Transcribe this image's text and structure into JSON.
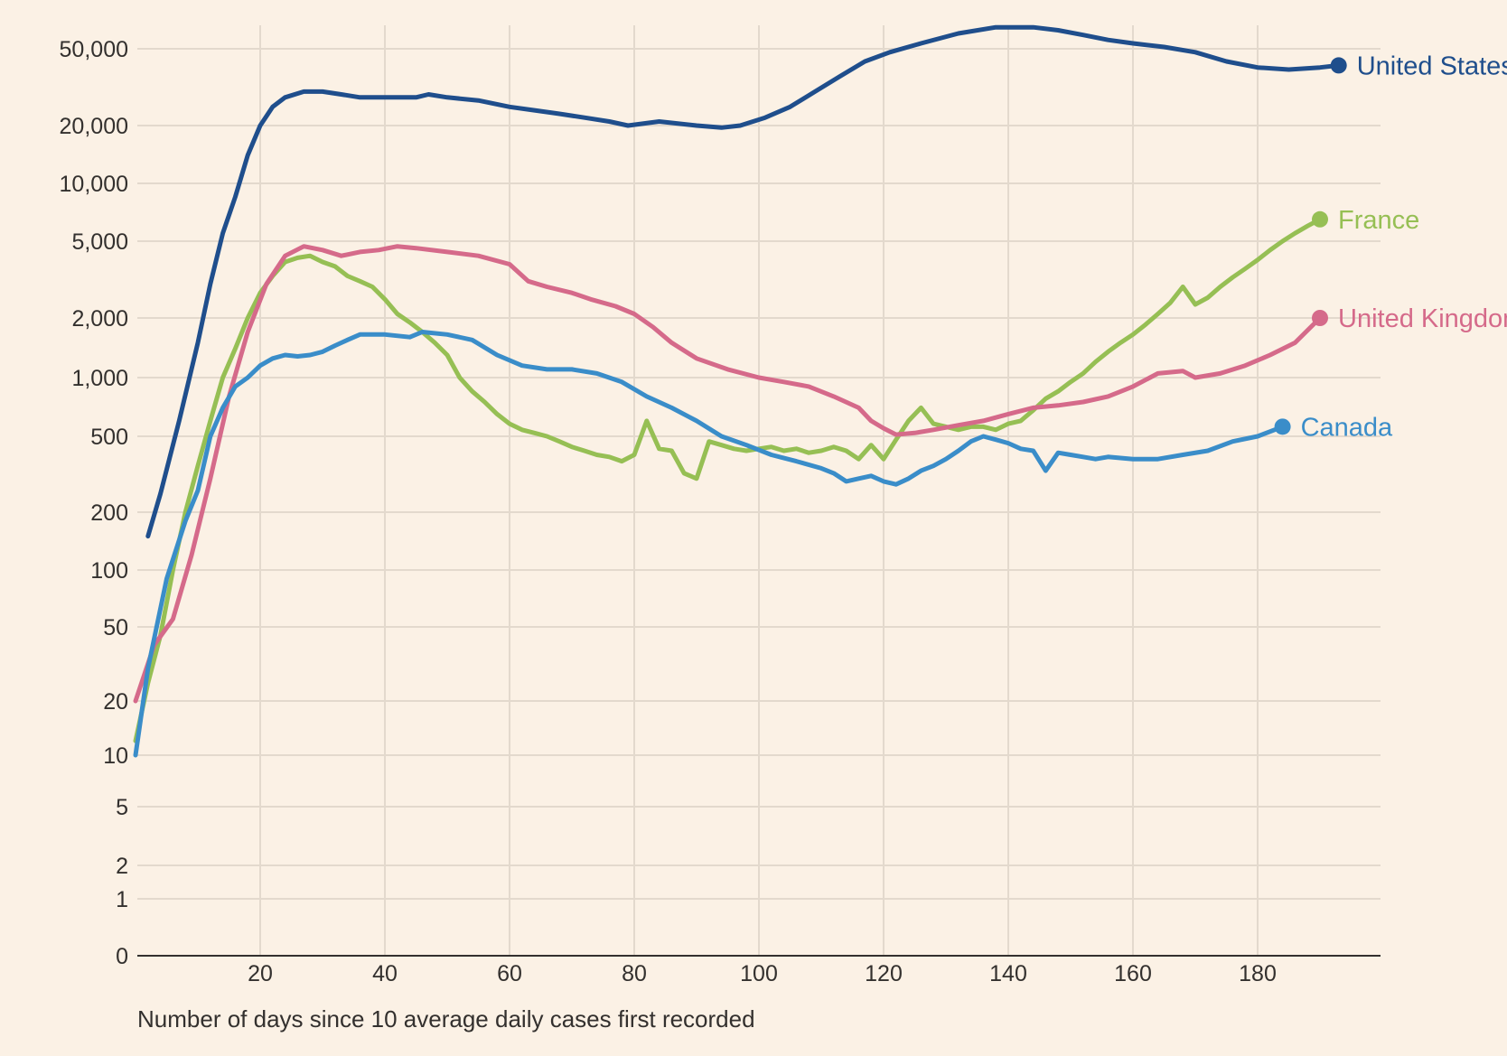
{
  "chart_data": {
    "type": "line",
    "title": "",
    "xlabel": "Number of days since 10 average daily cases first recorded",
    "ylabel": "",
    "yscale": "symlog",
    "grid": true,
    "xlim": [
      0,
      200
    ],
    "ylim": [
      0,
      65000
    ],
    "x_ticks": [
      20,
      40,
      60,
      80,
      100,
      120,
      140,
      160,
      180
    ],
    "x_tick_labels": [
      "20",
      "40",
      "60",
      "80",
      "100",
      "120",
      "140",
      "160",
      "180"
    ],
    "y_ticks": [
      0,
      1,
      2,
      5,
      10,
      20,
      50,
      100,
      200,
      500,
      1000,
      2000,
      5000,
      10000,
      20000,
      50000
    ],
    "y_tick_labels": [
      "0",
      "1",
      "2",
      "5",
      "10",
      "20",
      "50",
      "100",
      "200",
      "500",
      "1,000",
      "2,000",
      "5,000",
      "10,000",
      "20,000",
      "50,000"
    ],
    "series": [
      {
        "name": "United States",
        "color": "#1f4e8c",
        "points": [
          [
            2,
            150
          ],
          [
            4,
            250
          ],
          [
            7,
            600
          ],
          [
            10,
            1500
          ],
          [
            12,
            3000
          ],
          [
            14,
            5500
          ],
          [
            16,
            8500
          ],
          [
            18,
            14000
          ],
          [
            20,
            20000
          ],
          [
            22,
            25000
          ],
          [
            24,
            28000
          ],
          [
            27,
            30000
          ],
          [
            30,
            30000
          ],
          [
            33,
            29000
          ],
          [
            36,
            28000
          ],
          [
            40,
            28000
          ],
          [
            45,
            28000
          ],
          [
            47,
            29000
          ],
          [
            50,
            28000
          ],
          [
            55,
            27000
          ],
          [
            60,
            25000
          ],
          [
            64,
            24000
          ],
          [
            68,
            23000
          ],
          [
            72,
            22000
          ],
          [
            76,
            21000
          ],
          [
            79,
            20000
          ],
          [
            84,
            21000
          ],
          [
            90,
            20000
          ],
          [
            94,
            19500
          ],
          [
            97,
            20000
          ],
          [
            101,
            22000
          ],
          [
            105,
            25000
          ],
          [
            109,
            30000
          ],
          [
            113,
            36000
          ],
          [
            117,
            43000
          ],
          [
            121,
            48000
          ],
          [
            126,
            53000
          ],
          [
            132,
            59000
          ],
          [
            138,
            63000
          ],
          [
            144,
            63000
          ],
          [
            148,
            61000
          ],
          [
            152,
            58000
          ],
          [
            156,
            55000
          ],
          [
            160,
            53000
          ],
          [
            165,
            51000
          ],
          [
            170,
            48000
          ],
          [
            175,
            43000
          ],
          [
            180,
            40000
          ],
          [
            185,
            39000
          ],
          [
            190,
            40000
          ],
          [
            193,
            41000
          ]
        ]
      },
      {
        "name": "France",
        "color": "#96bf54",
        "points": [
          [
            0,
            12
          ],
          [
            2,
            25
          ],
          [
            4,
            45
          ],
          [
            6,
            100
          ],
          [
            8,
            200
          ],
          [
            10,
            350
          ],
          [
            12,
            600
          ],
          [
            14,
            1000
          ],
          [
            16,
            1400
          ],
          [
            18,
            2000
          ],
          [
            20,
            2700
          ],
          [
            22,
            3300
          ],
          [
            24,
            3900
          ],
          [
            26,
            4100
          ],
          [
            28,
            4200
          ],
          [
            30,
            3900
          ],
          [
            32,
            3700
          ],
          [
            34,
            3300
          ],
          [
            36,
            3100
          ],
          [
            38,
            2900
          ],
          [
            40,
            2500
          ],
          [
            42,
            2100
          ],
          [
            44,
            1900
          ],
          [
            46,
            1700
          ],
          [
            48,
            1500
          ],
          [
            50,
            1300
          ],
          [
            52,
            1000
          ],
          [
            54,
            850
          ],
          [
            56,
            750
          ],
          [
            58,
            650
          ],
          [
            60,
            580
          ],
          [
            62,
            540
          ],
          [
            64,
            520
          ],
          [
            66,
            500
          ],
          [
            68,
            470
          ],
          [
            70,
            440
          ],
          [
            72,
            420
          ],
          [
            74,
            400
          ],
          [
            76,
            390
          ],
          [
            78,
            370
          ],
          [
            80,
            400
          ],
          [
            82,
            600
          ],
          [
            84,
            430
          ],
          [
            86,
            420
          ],
          [
            88,
            320
          ],
          [
            90,
            300
          ],
          [
            92,
            470
          ],
          [
            94,
            450
          ],
          [
            96,
            430
          ],
          [
            98,
            420
          ],
          [
            100,
            430
          ],
          [
            102,
            440
          ],
          [
            104,
            420
          ],
          [
            106,
            430
          ],
          [
            108,
            410
          ],
          [
            110,
            420
          ],
          [
            112,
            440
          ],
          [
            114,
            420
          ],
          [
            116,
            380
          ],
          [
            118,
            450
          ],
          [
            120,
            380
          ],
          [
            122,
            480
          ],
          [
            124,
            600
          ],
          [
            126,
            700
          ],
          [
            128,
            580
          ],
          [
            130,
            560
          ],
          [
            132,
            540
          ],
          [
            134,
            560
          ],
          [
            136,
            560
          ],
          [
            138,
            540
          ],
          [
            140,
            580
          ],
          [
            142,
            600
          ],
          [
            144,
            680
          ],
          [
            146,
            780
          ],
          [
            148,
            850
          ],
          [
            150,
            950
          ],
          [
            152,
            1050
          ],
          [
            154,
            1200
          ],
          [
            156,
            1350
          ],
          [
            158,
            1500
          ],
          [
            160,
            1650
          ],
          [
            162,
            1850
          ],
          [
            164,
            2100
          ],
          [
            166,
            2400
          ],
          [
            168,
            2900
          ],
          [
            170,
            2350
          ],
          [
            172,
            2550
          ],
          [
            174,
            2900
          ],
          [
            176,
            3250
          ],
          [
            178,
            3600
          ],
          [
            180,
            4000
          ],
          [
            182,
            4500
          ],
          [
            184,
            5000
          ],
          [
            186,
            5500
          ],
          [
            188,
            6000
          ],
          [
            190,
            6500
          ]
        ]
      },
      {
        "name": "United Kingdom",
        "color": "#d56a8a",
        "points": [
          [
            0,
            20
          ],
          [
            3,
            40
          ],
          [
            6,
            55
          ],
          [
            9,
            120
          ],
          [
            12,
            300
          ],
          [
            15,
            800
          ],
          [
            18,
            1700
          ],
          [
            21,
            3000
          ],
          [
            24,
            4200
          ],
          [
            27,
            4700
          ],
          [
            30,
            4500
          ],
          [
            33,
            4200
          ],
          [
            36,
            4400
          ],
          [
            39,
            4500
          ],
          [
            42,
            4700
          ],
          [
            45,
            4600
          ],
          [
            50,
            4400
          ],
          [
            55,
            4200
          ],
          [
            60,
            3800
          ],
          [
            63,
            3100
          ],
          [
            66,
            2900
          ],
          [
            70,
            2700
          ],
          [
            73,
            2500
          ],
          [
            77,
            2300
          ],
          [
            80,
            2100
          ],
          [
            83,
            1800
          ],
          [
            86,
            1500
          ],
          [
            90,
            1250
          ],
          [
            95,
            1100
          ],
          [
            100,
            1000
          ],
          [
            104,
            950
          ],
          [
            108,
            900
          ],
          [
            112,
            800
          ],
          [
            116,
            700
          ],
          [
            118,
            600
          ],
          [
            120,
            550
          ],
          [
            122,
            510
          ],
          [
            125,
            520
          ],
          [
            128,
            540
          ],
          [
            132,
            570
          ],
          [
            136,
            600
          ],
          [
            140,
            650
          ],
          [
            144,
            700
          ],
          [
            148,
            720
          ],
          [
            152,
            750
          ],
          [
            156,
            800
          ],
          [
            160,
            900
          ],
          [
            164,
            1050
          ],
          [
            168,
            1080
          ],
          [
            170,
            1000
          ],
          [
            174,
            1050
          ],
          [
            178,
            1150
          ],
          [
            182,
            1300
          ],
          [
            186,
            1500
          ],
          [
            190,
            2000
          ]
        ]
      },
      {
        "name": "Canada",
        "color": "#3a8dc9",
        "points": [
          [
            0,
            10
          ],
          [
            2,
            30
          ],
          [
            5,
            90
          ],
          [
            8,
            180
          ],
          [
            10,
            260
          ],
          [
            12,
            500
          ],
          [
            14,
            700
          ],
          [
            16,
            900
          ],
          [
            18,
            1000
          ],
          [
            20,
            1150
          ],
          [
            22,
            1250
          ],
          [
            24,
            1300
          ],
          [
            26,
            1280
          ],
          [
            28,
            1300
          ],
          [
            30,
            1350
          ],
          [
            32,
            1450
          ],
          [
            34,
            1550
          ],
          [
            36,
            1650
          ],
          [
            40,
            1650
          ],
          [
            44,
            1600
          ],
          [
            46,
            1700
          ],
          [
            50,
            1650
          ],
          [
            54,
            1550
          ],
          [
            58,
            1300
          ],
          [
            62,
            1150
          ],
          [
            66,
            1100
          ],
          [
            70,
            1100
          ],
          [
            74,
            1050
          ],
          [
            78,
            950
          ],
          [
            82,
            800
          ],
          [
            86,
            700
          ],
          [
            90,
            600
          ],
          [
            94,
            500
          ],
          [
            98,
            450
          ],
          [
            102,
            400
          ],
          [
            106,
            370
          ],
          [
            110,
            340
          ],
          [
            112,
            320
          ],
          [
            114,
            290
          ],
          [
            116,
            300
          ],
          [
            118,
            310
          ],
          [
            120,
            290
          ],
          [
            122,
            280
          ],
          [
            124,
            300
          ],
          [
            126,
            330
          ],
          [
            128,
            350
          ],
          [
            130,
            380
          ],
          [
            132,
            420
          ],
          [
            134,
            470
          ],
          [
            136,
            500
          ],
          [
            138,
            480
          ],
          [
            140,
            460
          ],
          [
            142,
            430
          ],
          [
            144,
            420
          ],
          [
            146,
            330
          ],
          [
            148,
            410
          ],
          [
            150,
            400
          ],
          [
            152,
            390
          ],
          [
            154,
            380
          ],
          [
            156,
            390
          ],
          [
            160,
            380
          ],
          [
            164,
            380
          ],
          [
            168,
            400
          ],
          [
            172,
            420
          ],
          [
            176,
            470
          ],
          [
            180,
            500
          ],
          [
            184,
            560
          ]
        ]
      }
    ]
  }
}
